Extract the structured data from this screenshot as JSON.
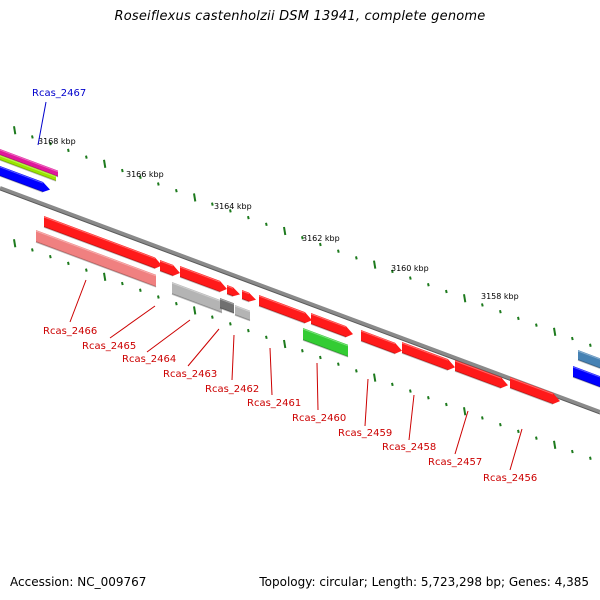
{
  "title": "Roseiflexus castenholzii DSM 13941, complete genome",
  "footer": {
    "accession": "Accession: NC_009767",
    "topology": "Topology: circular; Length: 5,723,298 bp; Genes: 4,385"
  },
  "colors": {
    "backbone": "#7a7a7a",
    "ticks": "#1d7a1d",
    "label_red": "#cc0000",
    "label_blue": "#0000cc",
    "gene_red": "#ff1a1a",
    "gene_pink": "#f08080",
    "gene_grey": "#b4b4b4",
    "gene_darkgrey": "#707070",
    "gene_green": "#33cc33",
    "gene_blue": "#0000ff",
    "gene_magenta": "#e0189c",
    "gene_lime": "#99e600",
    "gene_steel": "#4682b4"
  },
  "kbp_labels": [
    "3168 kbp",
    "3166 kbp",
    "3164 kbp",
    "3162 kbp",
    "3160 kbp",
    "3158 kbp"
  ],
  "gene_labels": [
    "Rcas_2467",
    "Rcas_2466",
    "Rcas_2465",
    "Rcas_2464",
    "Rcas_2463",
    "Rcas_2462",
    "Rcas_2461",
    "Rcas_2460",
    "Rcas_2459",
    "Rcas_2458",
    "Rcas_2457",
    "Rcas_2456"
  ]
}
